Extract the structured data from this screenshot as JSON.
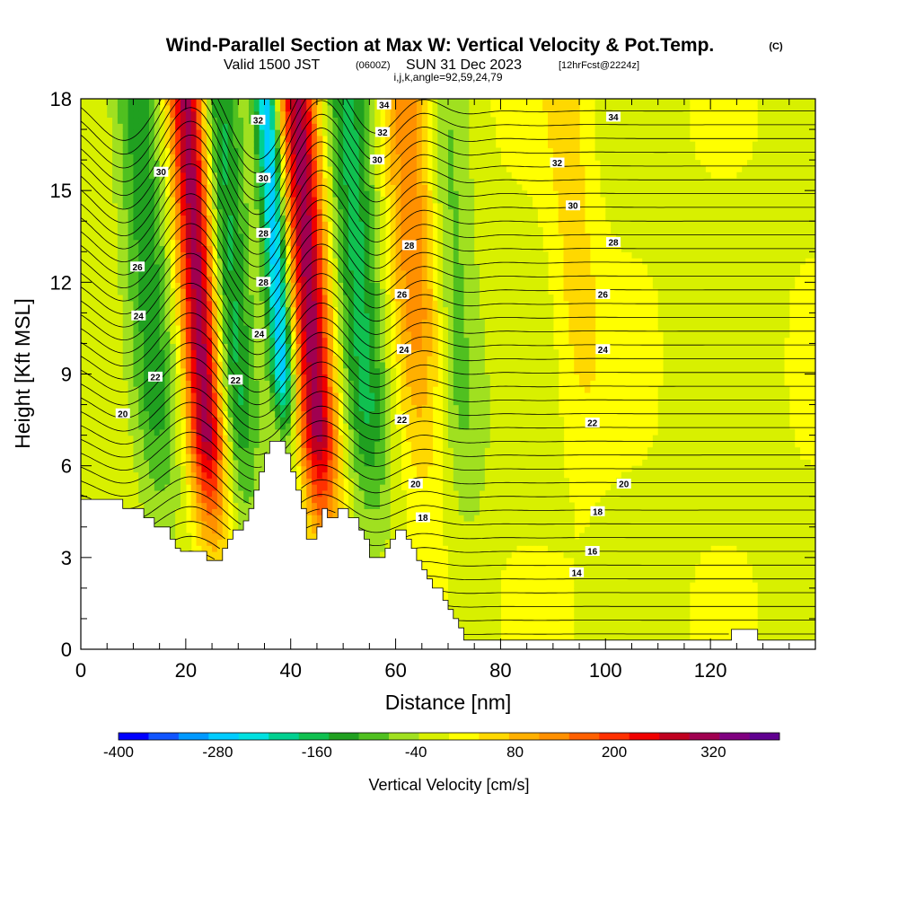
{
  "title": {
    "main": "Wind-Parallel Section at Max W: Vertical Velocity & Pot.Temp.",
    "copyright": "(C)",
    "valid_prefix": "Valid 1500 JST",
    "valid_utc": "(0600Z)",
    "valid_date": "SUN 31 Dec 2023",
    "forecast": "[12hrFcst@2224z]",
    "ijk": "i,j,k,angle=92,59,24,79"
  },
  "chart_data": {
    "type": "heatmap",
    "xlabel": "Distance [nm]",
    "ylabel": "Height [Kft MSL]",
    "xlim": [
      0,
      140
    ],
    "ylim": [
      0,
      18
    ],
    "x_ticks": [
      0,
      20,
      40,
      60,
      80,
      100,
      120
    ],
    "y_ticks": [
      0,
      3,
      6,
      9,
      12,
      15,
      18
    ],
    "colorbar": {
      "title": "Vertical Velocity [cm/s]",
      "range": [
        -400,
        400
      ],
      "tick_values": [
        -400,
        -280,
        -160,
        -40,
        80,
        200,
        320
      ],
      "tick_labels": [
        "-400",
        "-280",
        "-160",
        "-40",
        "80",
        "200",
        "320"
      ],
      "colors": [
        "#0000ff",
        "#1155ff",
        "#0099ff",
        "#00ccff",
        "#00e0e0",
        "#00d090",
        "#10c050",
        "#20a020",
        "#50c020",
        "#a0e020",
        "#d8f000",
        "#ffff00",
        "#ffd800",
        "#ffb000",
        "#ff9000",
        "#ff6000",
        "#ff3000",
        "#f00000",
        "#c00020",
        "#a00050",
        "#800080",
        "#600090"
      ]
    },
    "updrafts": [
      {
        "x_center": 23.5,
        "x_top_offset": 0,
        "peak_value": 350,
        "note": "strong updraft column"
      },
      {
        "x_center": 44.5,
        "x_top_offset": 0,
        "peak_value": 320,
        "note": "strong updraft column"
      },
      {
        "x_center": 64.5,
        "x_top_offset": 0,
        "peak_value": 150,
        "note": "moderate updraft"
      },
      {
        "x_center": 95,
        "x_top_offset": 0,
        "peak_value": 60,
        "note": "weak updraft"
      }
    ],
    "downdrafts": [
      {
        "x_center": 38.5,
        "peak_value": -280
      },
      {
        "x_center": 29,
        "peak_value": -160
      },
      {
        "x_center": 54,
        "peak_value": -150
      },
      {
        "x_center": 14,
        "peak_value": -120
      },
      {
        "x_center": 72,
        "peak_value": -80
      }
    ],
    "theta_contours": [
      14,
      16,
      18,
      20,
      22,
      24,
      26,
      28,
      30,
      32,
      34
    ],
    "contour_labels": [
      {
        "text": "20",
        "x": 8,
        "y": 7.7
      },
      {
        "text": "22",
        "x": 14.2,
        "y": 8.9
      },
      {
        "text": "24",
        "x": 11,
        "y": 10.9
      },
      {
        "text": "26",
        "x": 10.8,
        "y": 12.5
      },
      {
        "text": "30",
        "x": 15.3,
        "y": 15.6
      },
      {
        "text": "32",
        "x": 33.8,
        "y": 17.3
      },
      {
        "text": "30",
        "x": 34.8,
        "y": 15.4
      },
      {
        "text": "28",
        "x": 34.8,
        "y": 13.6
      },
      {
        "text": "28",
        "x": 34.8,
        "y": 12.0
      },
      {
        "text": "24",
        "x": 34,
        "y": 10.3
      },
      {
        "text": "22",
        "x": 29.5,
        "y": 8.8
      },
      {
        "text": "34",
        "x": 57.8,
        "y": 17.8
      },
      {
        "text": "32",
        "x": 57.5,
        "y": 16.9
      },
      {
        "text": "30",
        "x": 56.5,
        "y": 16.0
      },
      {
        "text": "28",
        "x": 62.6,
        "y": 13.2
      },
      {
        "text": "26",
        "x": 61.2,
        "y": 11.6
      },
      {
        "text": "24",
        "x": 61.6,
        "y": 9.8
      },
      {
        "text": "22",
        "x": 61.2,
        "y": 7.5
      },
      {
        "text": "20",
        "x": 63.8,
        "y": 5.4
      },
      {
        "text": "18",
        "x": 65.2,
        "y": 4.3
      },
      {
        "text": "34",
        "x": 101.5,
        "y": 17.4
      },
      {
        "text": "32",
        "x": 90.8,
        "y": 15.9
      },
      {
        "text": "30",
        "x": 93.8,
        "y": 14.5
      },
      {
        "text": "28",
        "x": 101.5,
        "y": 13.3
      },
      {
        "text": "26",
        "x": 99.5,
        "y": 11.6
      },
      {
        "text": "24",
        "x": 99.5,
        "y": 9.8
      },
      {
        "text": "22",
        "x": 97.5,
        "y": 7.4
      },
      {
        "text": "20",
        "x": 103.5,
        "y": 5.4
      },
      {
        "text": "18",
        "x": 98.5,
        "y": 4.5
      },
      {
        "text": "16",
        "x": 97.5,
        "y": 3.2
      },
      {
        "text": "14",
        "x": 94.5,
        "y": 2.5
      }
    ],
    "terrain": [
      [
        0,
        4.9
      ],
      [
        8,
        4.9
      ],
      [
        8,
        4.6
      ],
      [
        12,
        4.6
      ],
      [
        12,
        4.3
      ],
      [
        14,
        4.3
      ],
      [
        14,
        4.0
      ],
      [
        17,
        4.0
      ],
      [
        17,
        3.6
      ],
      [
        18,
        3.6
      ],
      [
        18,
        3.3
      ],
      [
        19,
        3.3
      ],
      [
        19,
        3.2
      ],
      [
        24,
        3.2
      ],
      [
        24,
        2.9
      ],
      [
        27,
        2.9
      ],
      [
        27,
        3.3
      ],
      [
        28,
        3.3
      ],
      [
        28,
        3.6
      ],
      [
        29,
        3.6
      ],
      [
        29,
        3.9
      ],
      [
        31,
        3.9
      ],
      [
        31,
        4.2
      ],
      [
        32,
        4.2
      ],
      [
        32,
        4.6
      ],
      [
        33,
        4.6
      ],
      [
        33,
        5.2
      ],
      [
        34,
        5.2
      ],
      [
        34,
        5.8
      ],
      [
        35,
        5.8
      ],
      [
        35,
        6.4
      ],
      [
        36,
        6.4
      ],
      [
        36,
        6.8
      ],
      [
        39,
        6.8
      ],
      [
        39,
        6.4
      ],
      [
        40,
        6.4
      ],
      [
        40,
        5.8
      ],
      [
        41,
        5.8
      ],
      [
        41,
        5.2
      ],
      [
        42,
        5.2
      ],
      [
        42,
        4.6
      ],
      [
        43,
        4.6
      ],
      [
        43,
        3.6
      ],
      [
        45,
        3.6
      ],
      [
        45,
        4.0
      ],
      [
        46,
        4.0
      ],
      [
        46,
        4.6
      ],
      [
        47,
        4.6
      ],
      [
        47,
        4.3
      ],
      [
        49,
        4.3
      ],
      [
        49,
        4.6
      ],
      [
        51,
        4.6
      ],
      [
        51,
        4.3
      ],
      [
        53,
        4.3
      ],
      [
        53,
        3.9
      ],
      [
        54,
        3.9
      ],
      [
        54,
        3.6
      ],
      [
        55,
        3.6
      ],
      [
        55,
        3.0
      ],
      [
        58,
        3.0
      ],
      [
        58,
        3.3
      ],
      [
        59,
        3.3
      ],
      [
        59,
        3.6
      ],
      [
        60,
        3.6
      ],
      [
        60,
        3.9
      ],
      [
        62,
        3.9
      ],
      [
        62,
        3.6
      ],
      [
        63,
        3.6
      ],
      [
        63,
        3.3
      ],
      [
        64,
        3.3
      ],
      [
        64,
        2.9
      ],
      [
        65,
        2.9
      ],
      [
        65,
        2.6
      ],
      [
        66,
        2.6
      ],
      [
        66,
        2.3
      ],
      [
        67,
        2.3
      ],
      [
        67,
        2.0
      ],
      [
        69,
        2.0
      ],
      [
        69,
        1.6
      ],
      [
        70,
        1.6
      ],
      [
        70,
        1.3
      ],
      [
        71,
        1.3
      ],
      [
        71,
        1.0
      ],
      [
        72,
        1.0
      ],
      [
        72,
        0.7
      ],
      [
        73,
        0.7
      ],
      [
        73,
        0.3
      ],
      [
        124,
        0.3
      ],
      [
        124,
        0.65
      ],
      [
        129,
        0.65
      ],
      [
        129,
        0.3
      ],
      [
        140,
        0.3
      ]
    ]
  }
}
